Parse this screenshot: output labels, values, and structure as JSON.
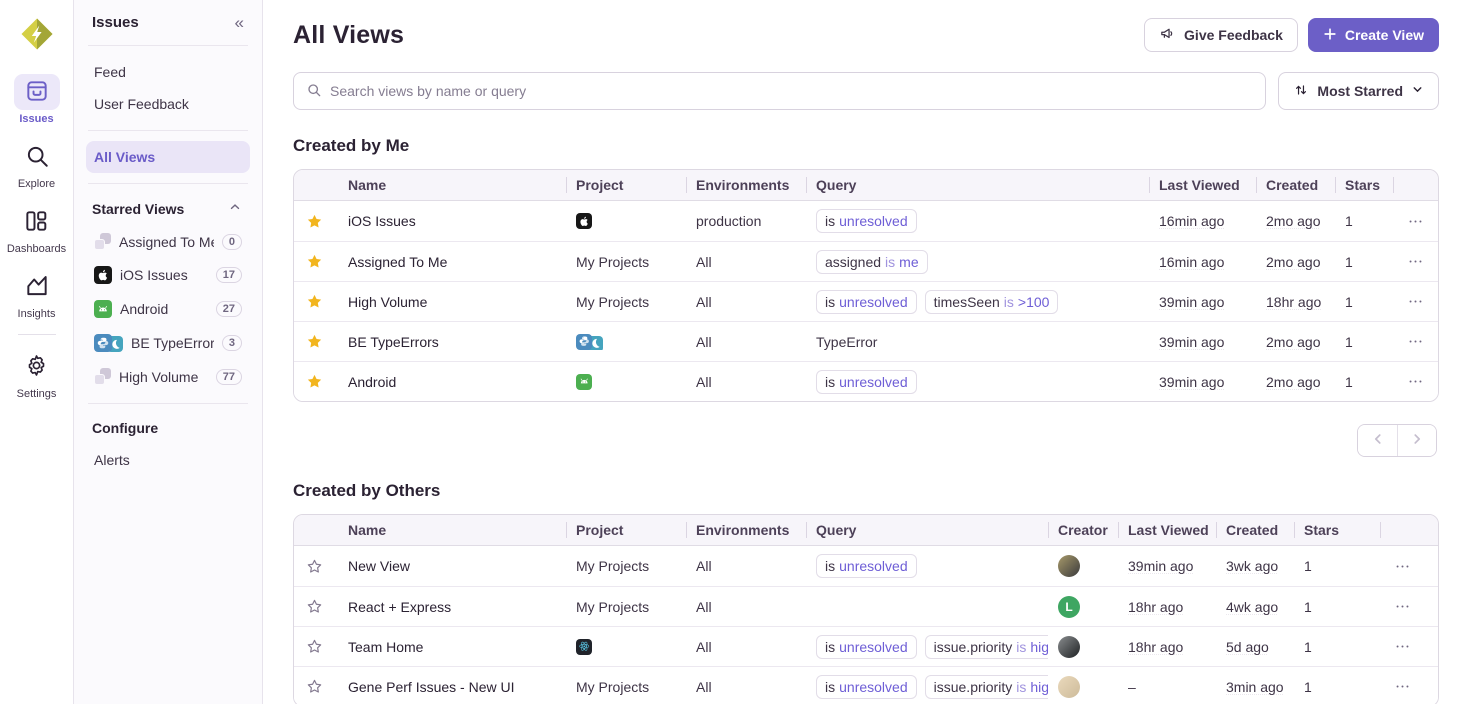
{
  "colors": {
    "accent": "#6C5FC7",
    "star_filled": "#F2B51E",
    "chip_value": "#6E5ED6"
  },
  "primary_nav": {
    "logo": "sentry-logo",
    "items": [
      {
        "label": "Issues",
        "icon": "issues-icon",
        "active": true
      },
      {
        "label": "Explore",
        "icon": "explore-icon",
        "active": false
      },
      {
        "label": "Dashboards",
        "icon": "dashboards-icon",
        "active": false
      },
      {
        "label": "Insights",
        "icon": "insights-icon",
        "active": false
      },
      {
        "label": "Settings",
        "icon": "settings-icon",
        "active": false
      }
    ]
  },
  "sidebar": {
    "title": "Issues",
    "links": [
      {
        "label": "Feed"
      },
      {
        "label": "User Feedback"
      }
    ],
    "all_views_label": "All Views",
    "starred_title": "Starred Views",
    "starred": [
      {
        "label": "Assigned To Me",
        "count": "0",
        "icon": "stack"
      },
      {
        "label": "iOS Issues",
        "count": "17",
        "icon": "apple"
      },
      {
        "label": "Android",
        "count": "27",
        "icon": "android"
      },
      {
        "label": "BE TypeErrors",
        "count": "3",
        "icon": "python-stack"
      },
      {
        "label": "High Volume",
        "count": "77",
        "icon": "stack"
      }
    ],
    "configure_title": "Configure",
    "configure_links": [
      {
        "label": "Alerts"
      }
    ]
  },
  "header": {
    "title": "All Views",
    "give_feedback_label": "Give Feedback",
    "create_view_label": "Create View"
  },
  "toolbar": {
    "search_placeholder": "Search views by name or query",
    "sort_label": "Most Starred"
  },
  "sections": [
    {
      "title": "Created by Me",
      "columns": [
        "Name",
        "Project",
        "Environments",
        "Query",
        "Last Viewed",
        "Created",
        "Stars"
      ],
      "rows": [
        {
          "starred": true,
          "name": "iOS Issues",
          "project": {
            "type": "icons",
            "icons": [
              "apple"
            ]
          },
          "environments": "production",
          "query": [
            {
              "chip": true,
              "parts": [
                {
                  "text": "is",
                  "kind": "key"
                },
                {
                  "text": "unresolved",
                  "kind": "value"
                }
              ]
            }
          ],
          "last_viewed": "16min ago",
          "created": "2mo ago",
          "stars": "1"
        },
        {
          "starred": true,
          "name": "Assigned To Me",
          "project": {
            "type": "text",
            "label": "My Projects"
          },
          "environments": "All",
          "query": [
            {
              "chip": true,
              "parts": [
                {
                  "text": "assigned",
                  "kind": "key"
                },
                {
                  "text": "is",
                  "kind": "op"
                },
                {
                  "text": "me",
                  "kind": "value"
                }
              ]
            }
          ],
          "last_viewed": "16min ago",
          "created": "2mo ago",
          "stars": "1"
        },
        {
          "starred": true,
          "name": "High Volume",
          "project": {
            "type": "text",
            "label": "My Projects"
          },
          "environments": "All",
          "query": [
            {
              "chip": true,
              "parts": [
                {
                  "text": "is",
                  "kind": "key"
                },
                {
                  "text": "unresolved",
                  "kind": "value"
                }
              ]
            },
            {
              "chip": true,
              "parts": [
                {
                  "text": "timesSeen",
                  "kind": "key"
                },
                {
                  "text": "is",
                  "kind": "op"
                },
                {
                  "text": ">100",
                  "kind": "value"
                }
              ]
            }
          ],
          "last_viewed": "39min ago",
          "created": "18hr ago",
          "stars": "1"
        },
        {
          "starred": true,
          "name": "BE TypeErrors",
          "project": {
            "type": "icons",
            "icons": [
              "python",
              "flask"
            ]
          },
          "environments": "All",
          "query": [
            {
              "chip": false,
              "parts": [
                {
                  "text": "TypeError",
                  "kind": "plain"
                }
              ]
            }
          ],
          "last_viewed": "39min ago",
          "created": "2mo ago",
          "stars": "1"
        },
        {
          "starred": true,
          "name": "Android",
          "project": {
            "type": "icons",
            "icons": [
              "android"
            ]
          },
          "environments": "All",
          "query": [
            {
              "chip": true,
              "parts": [
                {
                  "text": "is",
                  "kind": "key"
                },
                {
                  "text": "unresolved",
                  "kind": "value"
                }
              ]
            }
          ],
          "last_viewed": "39min ago",
          "created": "2mo ago",
          "stars": "1"
        }
      ]
    },
    {
      "title": "Created by Others",
      "columns": [
        "Name",
        "Project",
        "Environments",
        "Query",
        "Creator",
        "Last Viewed",
        "Created",
        "Stars"
      ],
      "rows": [
        {
          "starred": false,
          "name": "New View",
          "project": {
            "type": "text",
            "label": "My Projects"
          },
          "environments": "All",
          "query": [
            {
              "chip": true,
              "parts": [
                {
                  "text": "is",
                  "kind": "key"
                },
                {
                  "text": "unresolved",
                  "kind": "value"
                }
              ]
            }
          ],
          "creator": {
            "kind": "photo",
            "colors": [
              "#A89A6A",
              "#3A3A3C"
            ]
          },
          "last_viewed": "39min ago",
          "created": "3wk ago",
          "stars": "1"
        },
        {
          "starred": false,
          "name": "React + Express",
          "project": {
            "type": "text",
            "label": "My Projects"
          },
          "environments": "All",
          "query": [],
          "creator": {
            "kind": "initial",
            "letter": "L",
            "bg": "#3EA662"
          },
          "last_viewed": "18hr ago",
          "created": "4wk ago",
          "stars": "1"
        },
        {
          "starred": false,
          "name": "Team Home",
          "project": {
            "type": "icons",
            "icons": [
              "react"
            ]
          },
          "environments": "All",
          "query": [
            {
              "chip": true,
              "parts": [
                {
                  "text": "is",
                  "kind": "key"
                },
                {
                  "text": "unresolved",
                  "kind": "value"
                }
              ]
            },
            {
              "chip": true,
              "parts": [
                {
                  "text": "issue.priority",
                  "kind": "key"
                },
                {
                  "text": "is",
                  "kind": "op"
                },
                {
                  "text": "high",
                  "kind": "value"
                }
              ]
            }
          ],
          "creator": {
            "kind": "photo",
            "colors": [
              "#8A8D8F",
              "#1F2224"
            ]
          },
          "last_viewed": "18hr ago",
          "created": "5d ago",
          "stars": "1"
        },
        {
          "starred": false,
          "name": "Gene Perf Issues - New UI",
          "project": {
            "type": "text",
            "label": "My Projects"
          },
          "environments": "All",
          "query": [
            {
              "chip": true,
              "parts": [
                {
                  "text": "is",
                  "kind": "key"
                },
                {
                  "text": "unresolved",
                  "kind": "value"
                }
              ]
            },
            {
              "chip": true,
              "parts": [
                {
                  "text": "issue.priority",
                  "kind": "key"
                },
                {
                  "text": "is",
                  "kind": "op"
                },
                {
                  "text": "high",
                  "kind": "value"
                }
              ]
            }
          ],
          "creator": {
            "kind": "photo",
            "colors": [
              "#EAD9BC",
              "#CDBB9A"
            ]
          },
          "last_viewed": "–",
          "created": "3min ago",
          "stars": "1"
        }
      ]
    }
  ]
}
